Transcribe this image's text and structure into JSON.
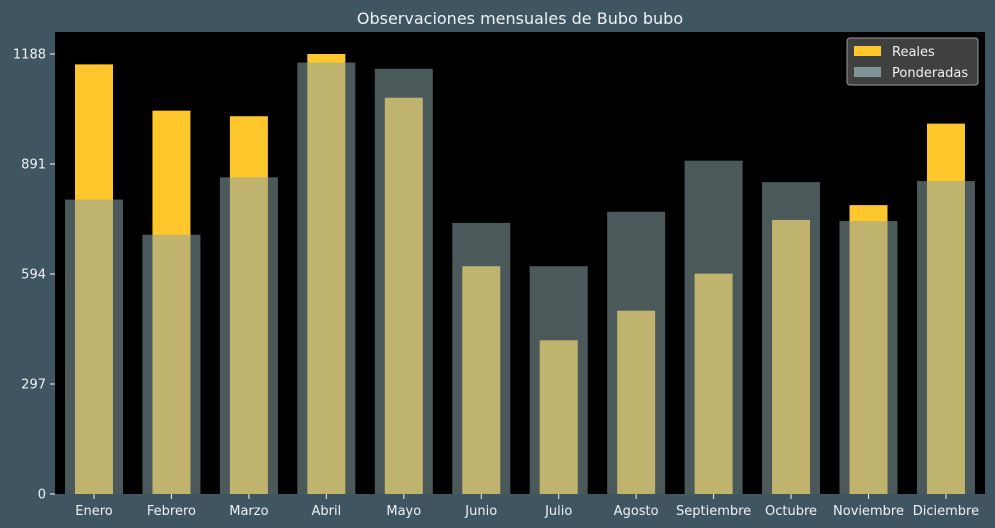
{
  "chart_data": {
    "type": "bar",
    "title": "Observaciones mensuales de Bubo bubo",
    "xlabel": "",
    "ylabel": "",
    "categories": [
      "Enero",
      "Febrero",
      "Marzo",
      "Abril",
      "Mayo",
      "Junio",
      "Julio",
      "Agosto",
      "Septiembre",
      "Octubre",
      "Noviembre",
      "Diciembre"
    ],
    "series": [
      {
        "name": "Reales",
        "values": [
          1160,
          1035,
          1020,
          1188,
          1070,
          615,
          415,
          495,
          595,
          740,
          780,
          1000
        ]
      },
      {
        "name": "Ponderadas",
        "values": [
          795,
          700,
          855,
          1165,
          1148,
          732,
          615,
          762,
          900,
          842,
          737,
          845
        ]
      }
    ],
    "ylim": [
      0,
      1188
    ],
    "yticks": [
      "0",
      "297",
      "594",
      "891",
      "1188"
    ],
    "ytick_values": [
      0,
      297,
      594,
      891,
      1188
    ],
    "legend_position": "top-right",
    "grid": false,
    "colors": {
      "figure_bg": "#3f5662",
      "plot_bg": "#000000",
      "text": "#f0f0f0",
      "reales": "#ffc72c",
      "ponderadas": "#8aa3a6",
      "ponderadas_alpha": "0.55"
    }
  }
}
